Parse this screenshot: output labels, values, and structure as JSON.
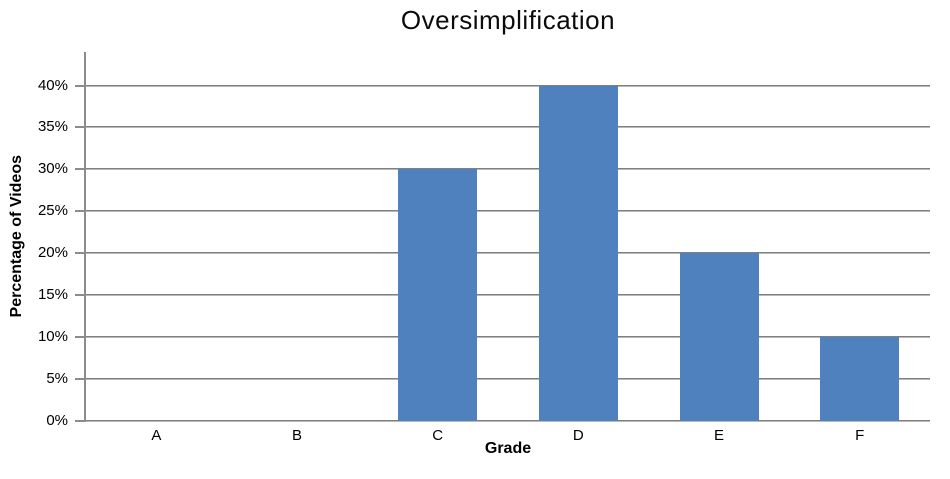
{
  "chart_data": {
    "type": "bar",
    "title": "Oversimplification",
    "xlabel": "Grade",
    "ylabel": "Percentage of Videos",
    "categories": [
      "A",
      "B",
      "C",
      "D",
      "E",
      "F"
    ],
    "values": [
      0,
      0,
      30,
      40,
      20,
      10
    ],
    "value_unit": "%",
    "ylim": [
      0,
      44
    ],
    "ytick_min": 0,
    "ytick_max": 40,
    "ytick_step": 5,
    "ytick_suffix": "%",
    "grid": "horizontal",
    "legend_position": "none",
    "bar_color": "#4e81bd",
    "grid_color": "#7f7f7f",
    "grid_color_light": "#b8b8b8",
    "axis_color": "#8c8c8c",
    "text_color": "#000000",
    "background_color": "#ffffff"
  }
}
